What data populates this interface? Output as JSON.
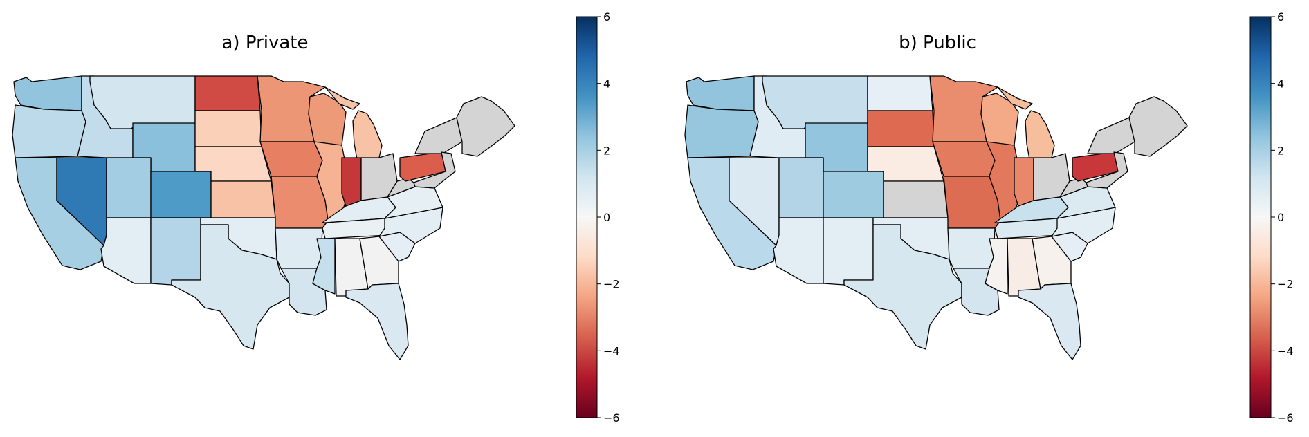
{
  "panels": [
    {
      "title": "a) Private",
      "colorbar_ticks": [
        "6",
        "4",
        "2",
        "0",
        "−2",
        "−4",
        "−6"
      ],
      "states": {
        "WA": "#92c4de",
        "OR": "#bcdaea",
        "CA": "#a7cfe4",
        "NV": "#2f79b5",
        "ID": "#c3dcec",
        "MT": "#d3e6f0",
        "WY": "#8bc0dd",
        "UT": "#a2cde3",
        "CO": "#4f9bc7",
        "AZ": "#e3eef4",
        "NM": "#b4d5e7",
        "ND": "#d04b44",
        "SD": "#fbd0b9",
        "NE": "#fcd8c4",
        "KS": "#f8c2a7",
        "OK": "#e3eef4",
        "TX": "#d6e7f0",
        "MN": "#ec9675",
        "IA": "#e78062",
        "MO": "#ea8c6d",
        "AR": "#deebf2",
        "LA": "#d5e5ef",
        "WI": "#ed9a79",
        "IL": "#f5b394",
        "MI": "#f8c2a6",
        "IN": "#c4383a",
        "OH": "#d4d4d4",
        "KY": "#e3eef4",
        "TN": "#eaf1f5",
        "MS": "#c6dfed",
        "AL": "#f2f2f2",
        "GA": "#f2f2f2",
        "FL": "#d9e8f1",
        "SC": "#e4eef4",
        "NC": "#e3eef4",
        "VA": "#e5eff4",
        "WV": "#d4d4d4",
        "PA": "#db5e4d",
        "NY": "#d4d4d4",
        "NE_REG": "#d4d4d4",
        "MID": "#d4d4d4"
      }
    },
    {
      "title": "b) Public",
      "colorbar_ticks": [
        "6",
        "4",
        "2",
        "0",
        "−2",
        "−4",
        "−6"
      ],
      "states": {
        "WA": "#92c4de",
        "OR": "#96c7df",
        "CA": "#bad9ea",
        "NV": "#dbe9f2",
        "ID": "#dfecf3",
        "MT": "#c7deec",
        "WY": "#93c5df",
        "UT": "#b3d4e7",
        "CO": "#9fcbe1",
        "AZ": "#e3eef4",
        "NM": "#e3eef4",
        "ND": "#e6eff5",
        "SD": "#dd6a51",
        "NE": "#fbece3",
        "KS": "#d4d4d4",
        "OK": "#e3eef4",
        "TX": "#d6e7f0",
        "MN": "#ea8d6e",
        "IA": "#e37c5e",
        "MO": "#dc6d53",
        "AR": "#deebf2",
        "LA": "#d5e5ef",
        "WI": "#f4a987",
        "IL": "#e2785c",
        "MI": "#f7be9e",
        "IN": "#e8876a",
        "OH": "#d4d4d4",
        "KY": "#c9e0ed",
        "TN": "#dbe9f1",
        "MS": "#f5f2ef",
        "AL": "#f8ede6",
        "GA": "#f6f1ed",
        "FL": "#d9e8f1",
        "SC": "#e4eef4",
        "NC": "#e3eef4",
        "VA": "#dbe9f1",
        "WV": "#d4d4d4",
        "PA": "#c8383a",
        "NY": "#d4d4d4",
        "NE_REG": "#d4d4d4",
        "MID": "#d4d4d4"
      }
    }
  ]
}
